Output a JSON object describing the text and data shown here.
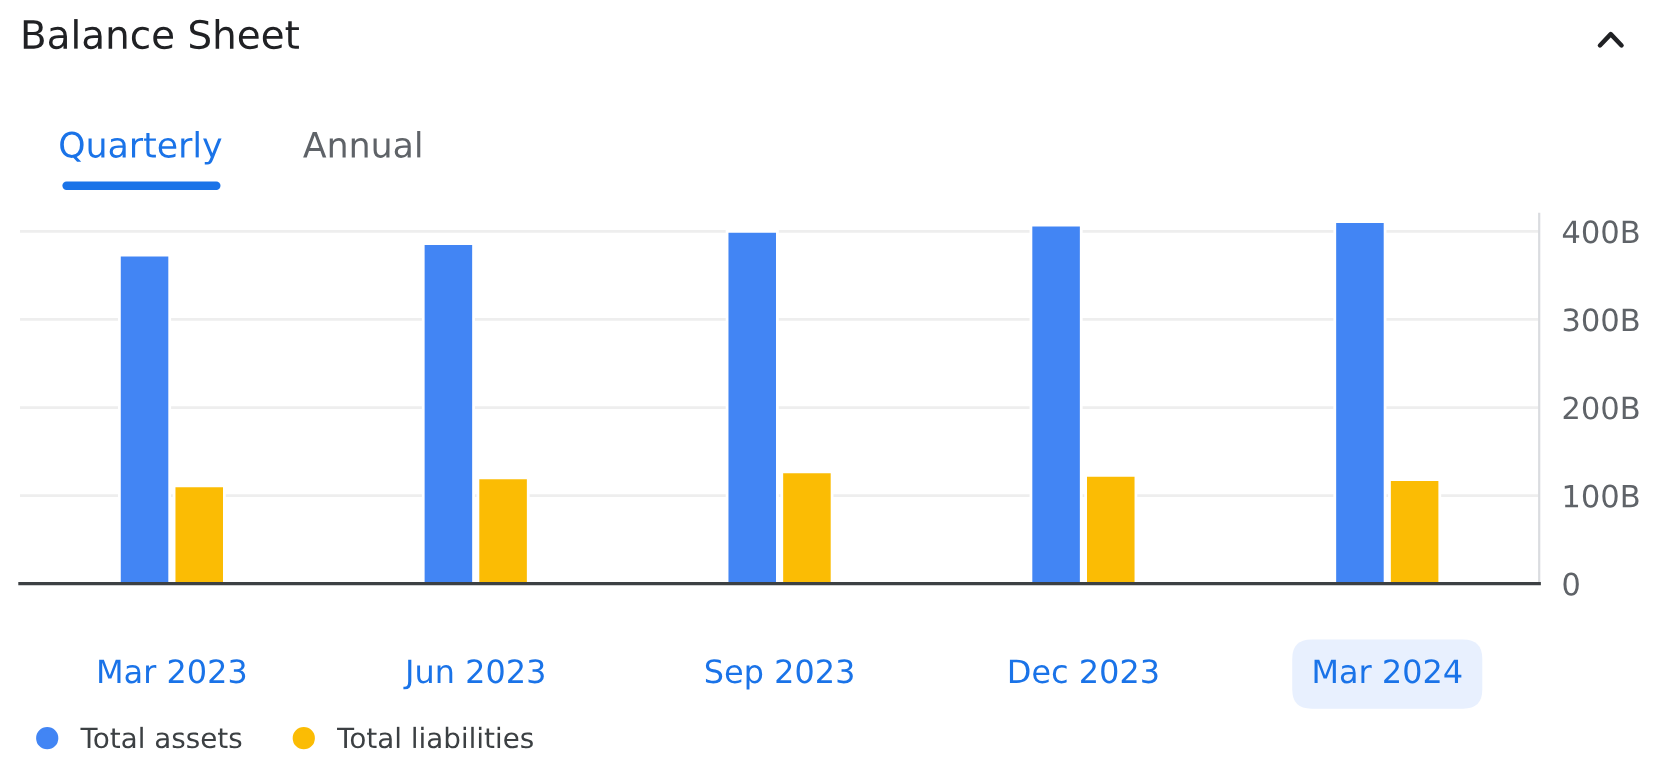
{
  "chart_data": {
    "type": "bar",
    "title": "Balance Sheet",
    "annotations": [
      "Quarterly",
      "Annual"
    ],
    "categories": [
      "Mar 2023",
      "Jun 2023",
      "Sep 2023",
      "Dec 2023",
      "Mar 2024"
    ],
    "series": [
      {
        "name": "Total assets",
        "color": "#4285f4",
        "values": [
          373,
          386,
          400,
          407,
          411
        ]
      },
      {
        "name": "Total liabilities",
        "color": "#fbbc04",
        "values": [
          111,
          120,
          127,
          123,
          118
        ]
      }
    ],
    "ylim": [
      0,
      420
    ],
    "yticks": [
      {
        "value": 0,
        "label": "0"
      },
      {
        "value": 100,
        "label": "100B"
      },
      {
        "value": 200,
        "label": "200B"
      },
      {
        "value": 300,
        "label": "300B"
      },
      {
        "value": 400,
        "label": "400B"
      }
    ],
    "grid": "y",
    "legend": "bottom"
  }
}
